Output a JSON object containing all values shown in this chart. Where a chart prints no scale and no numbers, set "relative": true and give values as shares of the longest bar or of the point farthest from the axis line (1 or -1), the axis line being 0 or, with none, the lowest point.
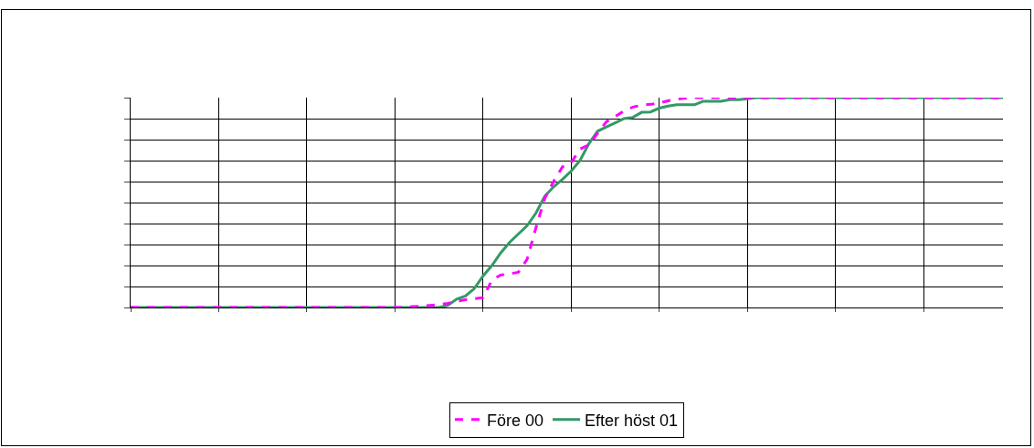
{
  "chart_data": {
    "type": "line",
    "relative": true,
    "grid": true,
    "legend": "bottom",
    "marker": "none",
    "categories": [
      null,
      null,
      null,
      null,
      null,
      null,
      null,
      null,
      null,
      null,
      null,
      null,
      null,
      null,
      null,
      null,
      null,
      null,
      null,
      null,
      null,
      null,
      null,
      null,
      null,
      null,
      null,
      null,
      null,
      null,
      null,
      null,
      null,
      null,
      null,
      null,
      null,
      null,
      null,
      null,
      null,
      null,
      null,
      null,
      null,
      null,
      null,
      null,
      null,
      null,
      null,
      null,
      null,
      null,
      null,
      null,
      null,
      null,
      null,
      null,
      null,
      null,
      null,
      null,
      null,
      null,
      null,
      null,
      null,
      null,
      null,
      null,
      null,
      null,
      null,
      null,
      null,
      null,
      null,
      null,
      null,
      null,
      null,
      null,
      null,
      null,
      null,
      null,
      null,
      null,
      null,
      null,
      null,
      null,
      null,
      null,
      null,
      null,
      null,
      null
    ],
    "series": [
      {
        "name": "Före 00",
        "color": "#ff00ff",
        "line_style": "dashed",
        "values": [
          0,
          0,
          0,
          0,
          0,
          0,
          0,
          0,
          0,
          0,
          0,
          0,
          0,
          0,
          0,
          0,
          0,
          0,
          0,
          0,
          0,
          0,
          0,
          0,
          0,
          0,
          0,
          0,
          0,
          0,
          0,
          0,
          0.004,
          0.006,
          0.01,
          0.013,
          0.02,
          0.03,
          0.037,
          0.042,
          0.047,
          0.13,
          0.155,
          0.16,
          0.168,
          0.23,
          0.38,
          0.52,
          0.6,
          0.67,
          0.69,
          0.755,
          0.775,
          0.83,
          0.885,
          0.91,
          0.937,
          0.955,
          0.964,
          0.968,
          0.975,
          0.985,
          0.993,
          0.998,
          1,
          1,
          1,
          1,
          1,
          1,
          1,
          1,
          1,
          1,
          1,
          1,
          1,
          1,
          1,
          1,
          1,
          1,
          1,
          1,
          1,
          1,
          1,
          1,
          1,
          1,
          1,
          1,
          1,
          1,
          1,
          1,
          1,
          1,
          1,
          1
        ]
      },
      {
        "name": "Efter höst 01",
        "color": "#339966",
        "line_style": "solid",
        "values": [
          0,
          0,
          0,
          0,
          0,
          0,
          0,
          0,
          0,
          0,
          0,
          0,
          0,
          0,
          0,
          0,
          0,
          0,
          0,
          0,
          0,
          0,
          0,
          0,
          0,
          0,
          0,
          0,
          0,
          0,
          0,
          0,
          0,
          0,
          0,
          0,
          0.01,
          0.04,
          0.055,
          0.09,
          0.15,
          0.2,
          0.26,
          0.31,
          0.35,
          0.39,
          0.45,
          0.53,
          0.575,
          0.61,
          0.65,
          0.7,
          0.78,
          0.84,
          0.86,
          0.88,
          0.9,
          0.906,
          0.93,
          0.932,
          0.95,
          0.96,
          0.966,
          0.966,
          0.966,
          0.983,
          0.983,
          0.983,
          0.99,
          0.99,
          0.995,
          1,
          1,
          1,
          1,
          1,
          1,
          1,
          1,
          1,
          1,
          1,
          1,
          1,
          1,
          1,
          1,
          1,
          1,
          1,
          1,
          1,
          1,
          1,
          1,
          1,
          1,
          1,
          1,
          1
        ]
      }
    ]
  }
}
